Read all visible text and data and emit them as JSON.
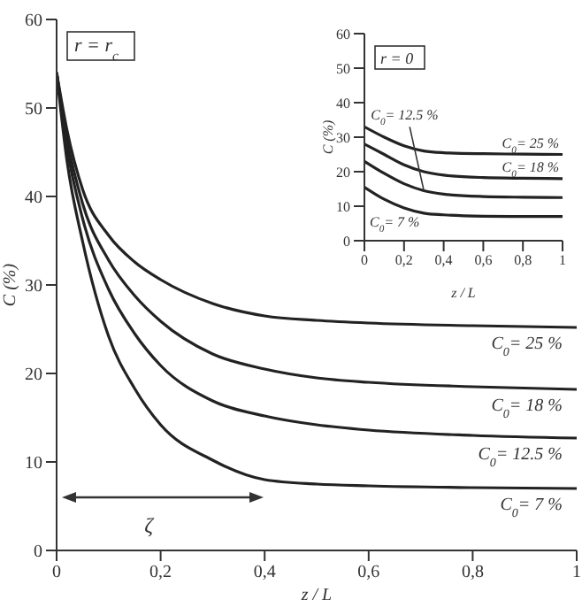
{
  "chart_data": [
    {
      "type": "line",
      "xlabel": "z / L",
      "ylabel": "C (%)",
      "xlim": [
        0,
        1
      ],
      "ylim": [
        0,
        60
      ],
      "xticks": [
        {
          "value": 0,
          "label": "0"
        },
        {
          "value": 0.2,
          "label": "0,2"
        },
        {
          "value": 0.4,
          "label": "0,4"
        },
        {
          "value": 0.6,
          "label": "0,6"
        },
        {
          "value": 0.8,
          "label": "0,8"
        },
        1
      ],
      "yticks": [
        {
          "value": 0,
          "label": "0"
        },
        10,
        20,
        30,
        40,
        50,
        60
      ],
      "x": [
        0,
        0.02,
        0.05,
        0.1,
        0.15,
        0.2,
        0.3,
        0.4,
        0.5,
        0.6,
        0.8,
        1
      ],
      "series": [
        {
          "name": "C$_{0}$= 25 %",
          "color": "#222222",
          "values": [
            54,
            47.5,
            40.8,
            35.6,
            32.6,
            30.6,
            27.9,
            26.5,
            26,
            25.7,
            25.4,
            25.2
          ]
        },
        {
          "name": "C$_{0}$= 18 %",
          "color": "#222222",
          "values": [
            54,
            46.5,
            39.2,
            32.8,
            28.8,
            25.9,
            22.2,
            20.5,
            19.5,
            19,
            18.5,
            18.2
          ]
        },
        {
          "name": "C$_{0}$= 12.5 %",
          "color": "#222222",
          "values": [
            54,
            45.5,
            37.5,
            29.5,
            24.5,
            20.9,
            16.9,
            15.2,
            14.2,
            13.6,
            13,
            12.7
          ]
        },
        {
          "name": "C$_{0}$= 7 %",
          "color": "#222222",
          "values": [
            54,
            44,
            34.9,
            24.2,
            18.3,
            14.2,
            10.2,
            8,
            7.5,
            7.3,
            7.1,
            7
          ]
        }
      ],
      "marker": "none",
      "grid": false,
      "legend": false,
      "annotations": [
        "r = r$_{c}$",
        "ζ"
      ]
    },
    {
      "type": "line",
      "xlabel": "z / L",
      "ylabel": "C (%)",
      "xlim": [
        0,
        1
      ],
      "ylim": [
        0,
        60
      ],
      "xticks": [
        {
          "value": 0,
          "label": "0"
        },
        {
          "value": 0.2,
          "label": "0,2"
        },
        {
          "value": 0.4,
          "label": "0,4"
        },
        {
          "value": 0.6,
          "label": "0,6"
        },
        {
          "value": 0.8,
          "label": "0,8"
        },
        1
      ],
      "yticks": [
        {
          "value": 0,
          "label": "0"
        },
        10,
        20,
        30,
        40,
        50,
        60
      ],
      "x": [
        0,
        0.1,
        0.2,
        0.3,
        0.4,
        0.6,
        0.8,
        1
      ],
      "series": [
        {
          "name": "C$_{0}$= 25 %",
          "color": "#222222",
          "values": [
            33,
            30,
            27.5,
            26,
            25.5,
            25.2,
            25.1,
            25
          ]
        },
        {
          "name": "C$_{0}$= 18 %",
          "color": "#222222",
          "values": [
            28,
            25,
            22,
            20,
            19,
            18.3,
            18.1,
            18
          ]
        },
        {
          "name": "C$_{0}$= 12.5 %",
          "color": "#222222",
          "values": [
            23,
            19.5,
            16.5,
            14.5,
            13.5,
            12.8,
            12.6,
            12.5
          ]
        },
        {
          "name": "C$_{0}$= 7 %",
          "color": "#222222",
          "values": [
            15.5,
            12,
            9.5,
            8,
            7.5,
            7.1,
            7,
            7
          ]
        }
      ],
      "marker": "none",
      "grid": false,
      "legend": false,
      "annotations": [
        "r = 0"
      ]
    }
  ]
}
